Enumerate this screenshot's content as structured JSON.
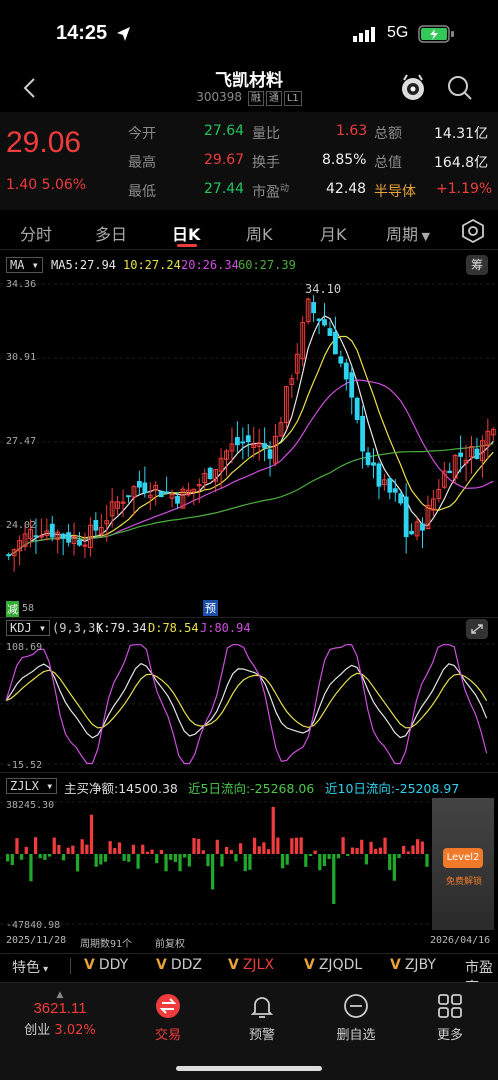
{
  "status": {
    "time": "14:25",
    "network": "5G"
  },
  "header": {
    "title": "飞凯材料",
    "code": "300398",
    "tags": [
      "融",
      "通",
      "L1"
    ]
  },
  "quote": {
    "price": "29.06",
    "change": "1.40",
    "change_pct": "5.06%",
    "open_label": "今开",
    "open": "27.64",
    "high_label": "最高",
    "high": "29.67",
    "low_label": "最低",
    "low": "27.44",
    "vol_ratio_label": "量比",
    "vol_ratio": "1.63",
    "turnover_label": "换手",
    "turnover": "8.85%",
    "pe_label": "市盈",
    "pe_sup": "动",
    "pe": "42.48",
    "amount_label": "总额",
    "amount": "14.31亿",
    "mcap_label": "总值",
    "mcap": "164.8亿",
    "sector": "半导体",
    "sector_change": "+1.19%"
  },
  "tabs": [
    "分时",
    "多日",
    "日K",
    "周K",
    "月K",
    "周期"
  ],
  "kline": {
    "indicator": "MA",
    "ma5_label": "MA5:27.94",
    "ma10_label": "10:27.24",
    "ma20_label": "20:26.34",
    "ma60_label": "60:27.39",
    "chip_label": "筹",
    "y_ticks": [
      "34.36",
      "30.91",
      "27.47",
      "24.02"
    ],
    "peak_label": "34.10",
    "low_label": "58",
    "reduce_label": "减",
    "forecast_label": "预"
  },
  "kdj": {
    "name": "KDJ",
    "params": "(9,3,3)",
    "k": "K:79.34",
    "d": "D:78.54",
    "j": "J:80.94",
    "y_max": "108.69",
    "y_min": "-15.52"
  },
  "zjlx": {
    "name": "ZJLX",
    "main_net": "主买净额:14500.38",
    "flow5": "近5日流向:-25268.06",
    "flow10": "近10日流向:-25208.97",
    "y_max": "38245.30",
    "y_min": "-47840.98",
    "start_date": "2025/11/28",
    "period_count": "周期数91个",
    "adjust": "前复权",
    "end_date": "2026/04/16",
    "level2": "Level2",
    "level2_sub": "免费解锁"
  },
  "tools": {
    "feature": "特色",
    "items": [
      "DDY",
      "DDZ",
      "ZJLX",
      "ZJQDL",
      "ZJBY"
    ],
    "more": "市盈率"
  },
  "bottom_nav": {
    "index_value": "3621.11",
    "index_name": "创业",
    "index_pct": "3.02%",
    "trade": "交易",
    "alert": "预警",
    "remove": "删自选",
    "more": "更多"
  },
  "colors": {
    "up": "#f03c3c",
    "down": "#2fd3f0",
    "ma5": "#e6e6e6",
    "ma10": "#e8e04a",
    "ma20": "#d04ee0",
    "ma60": "#4cae3c"
  }
}
